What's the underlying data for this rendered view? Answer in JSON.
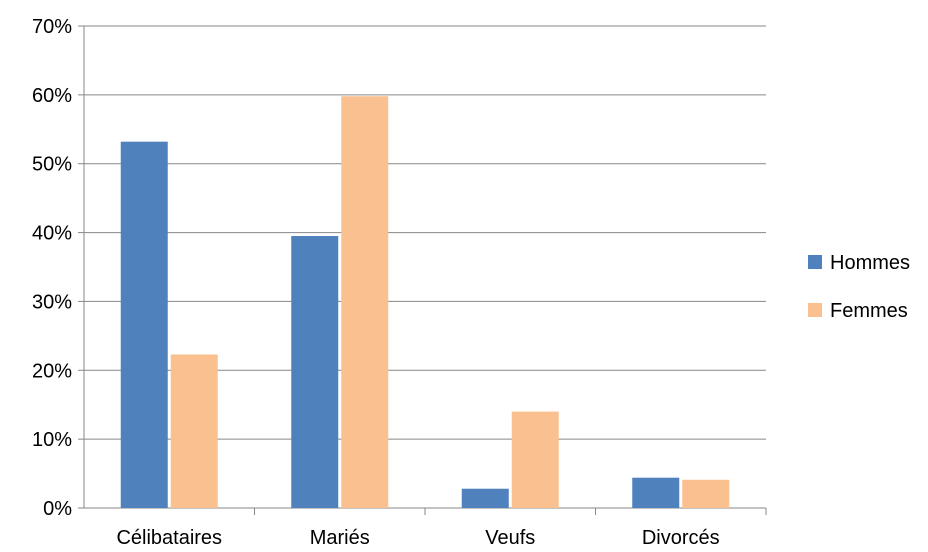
{
  "chart_data": {
    "type": "bar",
    "categories": [
      "Célibataires",
      "Mariés",
      "Veufs",
      "Divorcés"
    ],
    "series": [
      {
        "name": "Hommes",
        "values": [
          53.2,
          39.5,
          2.8,
          4.4
        ],
        "color": "#4F81BD"
      },
      {
        "name": "Femmes",
        "values": [
          22.3,
          59.8,
          14.0,
          4.1
        ],
        "color": "#FAC090"
      }
    ],
    "ylim": [
      0,
      70
    ],
    "yticks": [
      0,
      10,
      20,
      30,
      40,
      50,
      60,
      70
    ],
    "ytick_labels": [
      "0%",
      "10%",
      "20%",
      "30%",
      "40%",
      "50%",
      "60%",
      "70%"
    ],
    "grid": true,
    "legend_position": "right",
    "title": "",
    "xlabel": "",
    "ylabel": ""
  }
}
